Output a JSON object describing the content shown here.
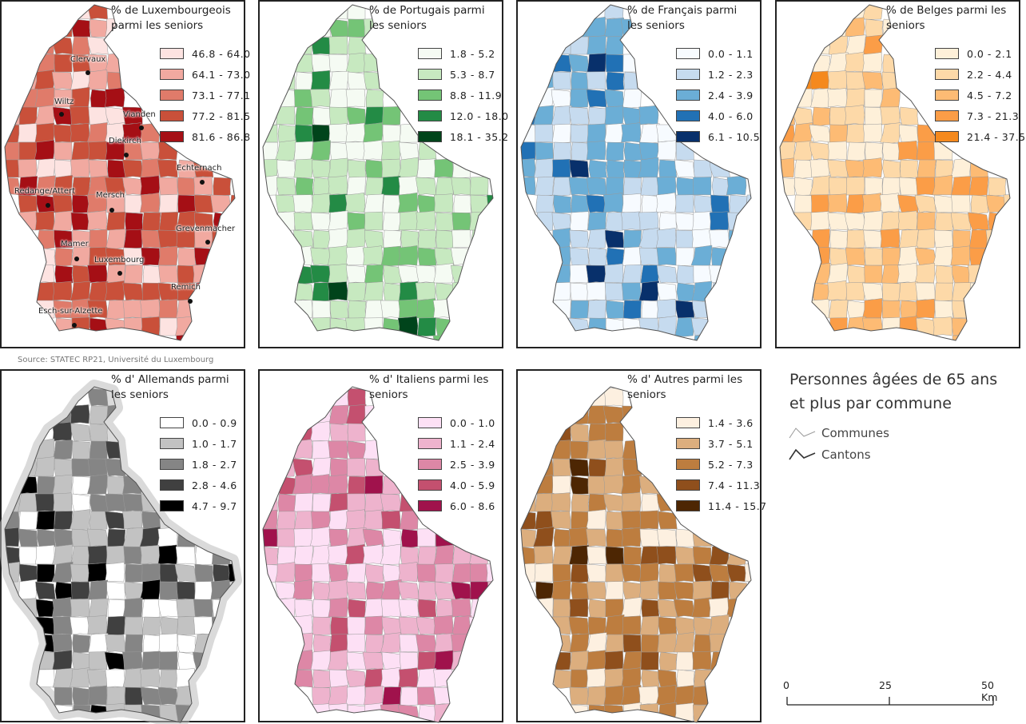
{
  "main_title": "Personnes âgées de 65 ans et plus par commune",
  "source": "Source: STATEC RP21, Université du Luxembourg",
  "key": {
    "communes": "Communes",
    "cantons": "Cantons"
  },
  "scale": {
    "labels": [
      "0",
      "25",
      "50 Km"
    ]
  },
  "panels": [
    {
      "title": "% de Luxembourgeois parmi les seniors",
      "colors": [
        "#fde3e1",
        "#f1a9a0",
        "#e07b6a",
        "#c9503a",
        "#a50f15"
      ],
      "classes": [
        "46.8 - 64.0",
        "64.1 - 73.0",
        "73.1 - 77.1",
        "77.2 - 81.5",
        "81.6 - 86.8"
      ],
      "weights": [
        0.12,
        0.25,
        0.2,
        0.3,
        0.13
      ]
    },
    {
      "title": "% de Portugais parmi les seniors",
      "colors": [
        "#f5fbf3",
        "#c7e9c0",
        "#74c476",
        "#238b45",
        "#00441b"
      ],
      "classes": [
        "1.8 - 5.2",
        "5.3 - 8.7",
        "8.8 - 11.9",
        "12.0 - 18.0",
        "18.1 - 35.2"
      ],
      "weights": [
        0.38,
        0.38,
        0.14,
        0.08,
        0.02
      ]
    },
    {
      "title": "% de Français parmi les seniors",
      "colors": [
        "#f7fbff",
        "#c6dbef",
        "#6baed6",
        "#2171b5",
        "#08306b"
      ],
      "classes": [
        "0.0 - 1.1",
        "1.2 - 2.3",
        "2.4 - 3.9",
        "4.0 - 6.0",
        "6.1 - 10.5"
      ],
      "weights": [
        0.22,
        0.33,
        0.3,
        0.1,
        0.05
      ]
    },
    {
      "title": "% de Belges parmi les seniors",
      "colors": [
        "#fef0d9",
        "#fdd9a8",
        "#fdbb74",
        "#fb9d47",
        "#f5891d"
      ],
      "classes": [
        "0.0 - 2.1",
        "2.2 - 4.4",
        "4.5 - 7.2",
        "7.3 - 21.3",
        "21.4 - 37.5"
      ],
      "weights": [
        0.35,
        0.35,
        0.18,
        0.1,
        0.02
      ]
    },
    {
      "title": "% d' Allemands parmi les seniors",
      "colors": [
        "#ffffff",
        "#c2c2c2",
        "#858585",
        "#404040",
        "#000000"
      ],
      "classes": [
        "0.0 - 0.9",
        "1.0 - 1.7",
        "1.8 - 2.7",
        "2.8 - 4.6",
        "4.7 - 9.7"
      ],
      "weights": [
        0.15,
        0.32,
        0.28,
        0.15,
        0.1
      ]
    },
    {
      "title": "% d' Italiens parmi les seniors",
      "colors": [
        "#fde0f5",
        "#eeb3cd",
        "#dd87a6",
        "#c4506f",
        "#a0124c"
      ],
      "classes": [
        "0.0 - 1.0",
        "1.1 - 2.4",
        "2.5 - 3.9",
        "4.0 - 5.9",
        "6.0 - 8.6"
      ],
      "weights": [
        0.3,
        0.35,
        0.2,
        0.1,
        0.05
      ]
    },
    {
      "title": "% d' Autres parmi les seniors",
      "colors": [
        "#fdf0e0",
        "#dcae7e",
        "#bd7d3f",
        "#8f4f1c",
        "#4d2603"
      ],
      "classes": [
        "1.4 - 3.6",
        "3.7 - 5.1",
        "5.2 - 7.3",
        "7.4 - 11.3",
        "11.4 - 15.7"
      ],
      "weights": [
        0.15,
        0.3,
        0.35,
        0.15,
        0.05
      ]
    }
  ],
  "towns": [
    "Clervaux",
    "Wiltz",
    "Vianden",
    "Diekirch",
    "Echternach",
    "Redange/Attert",
    "Mersch",
    "Grevenmacher",
    "Mamer",
    "Luxembourg",
    "Remich",
    "Esch-sur-Alzette"
  ]
}
